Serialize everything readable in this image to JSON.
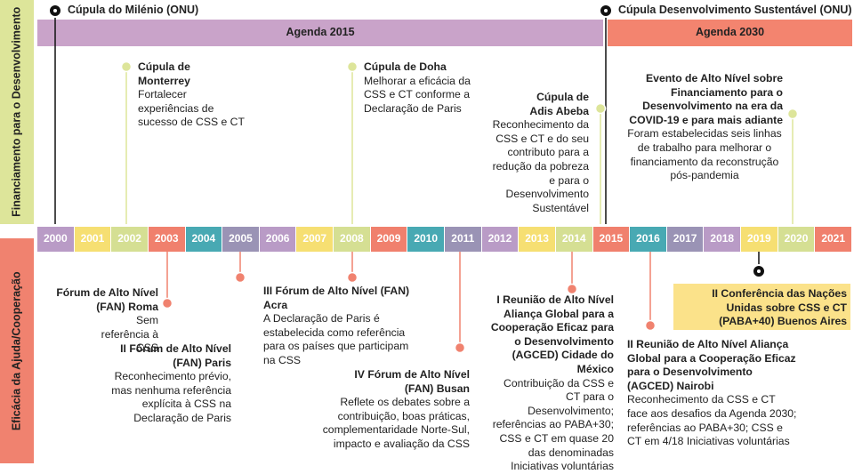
{
  "side_labels": {
    "top": "Financiamento para o Desenvolvimento",
    "bottom": "Eficácia da Ajuda/Cooperação"
  },
  "summits": [
    "Cúpula do Milénio (ONU)",
    "Cúpula Desenvolvimento Sustentável (ONU)"
  ],
  "agendas": [
    "Agenda 2015",
    "Agenda 2030"
  ],
  "years": [
    "2000",
    "2001",
    "2002",
    "2003",
    "2004",
    "2005",
    "2006",
    "2007",
    "2008",
    "2009",
    "2010",
    "2011",
    "2012",
    "2013",
    "2014",
    "2015",
    "2016",
    "2017",
    "2018",
    "2019",
    "2020",
    "2021"
  ],
  "top_events": [
    {
      "title": "Cúpula de Monterrey",
      "text": "Fortalecer experiências de sucesso de CSS e CT"
    },
    {
      "title": "Cúpula de Doha",
      "text": "Melhorar a eficácia da CSS e CT conforme a Declaração de Paris"
    },
    {
      "title": "Cúpula de Adis Abeba",
      "text": "Reconhecimento da CSS e CT e do seu contributo para a redução da pobreza e para o Desenvolvimento Sustentável"
    },
    {
      "title": "Evento de Alto Nível sobre Financiamento para o Desenvolvimento na era da COVID-19 e para mais adiante",
      "text": "Foram estabelecidas seis linhas de trabalho para melhorar o financiamento da reconstrução pós-pandemia"
    }
  ],
  "bottom_events": [
    {
      "title": "Fórum de Alto Nível (FAN) Roma",
      "text": "Sem referência à CSS"
    },
    {
      "title": "II Fórum de Alto Nível (FAN) Paris",
      "text": "Reconhecimento prévio, mas nenhuma referência explícita à CSS na Declaração de Paris"
    },
    {
      "title": "III Fórum de Alto Nível (FAN) Acra",
      "text": "A Declaração de Paris é estabelecida como referência para os países que participam na CSS"
    },
    {
      "title": "IV Fórum de Alto Nível (FAN) Busan",
      "text": "Reflete os debates sobre a contribuição, boas práticas, complementaridade Norte-Sul, impacto e avaliação da CSS"
    },
    {
      "title": "I Reunião de Alto Nível Aliança Global para a Cooperação Eficaz para o Desenvolvimento (AGCED) Cidade do México",
      "text": "Contribuição da CSS e CT para o Desenvolvimento; referências ao PABA+30; CSS e CT em quase 20 das denominadas Iniciativas voluntárias"
    },
    {
      "title": "II Reunião de Alto Nível Aliança Global para a Cooperação Eficaz para o Desenvolvimento (AGCED) Nairobi",
      "text": "Reconhecimento da CSS e CT face aos desafios da Agenda 2030; referências ao PABA+30; CSS e CT em 4/18 Iniciativas voluntárias"
    }
  ],
  "highlight": "II Conferência das Nações Unidas sobre CSS e CT (PABA+40) Buenos Aires"
}
